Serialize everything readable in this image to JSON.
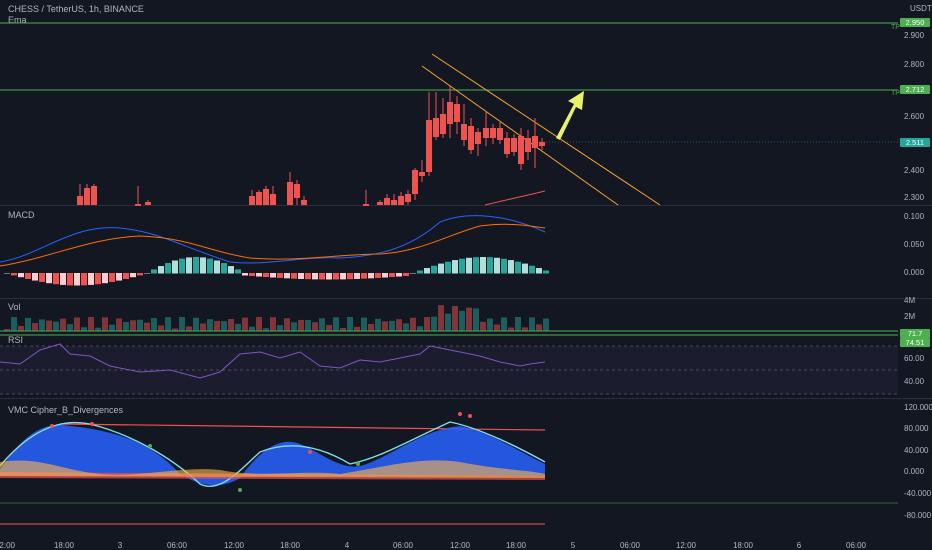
{
  "symbol_title": "CHESS / TetherUS, 1h, BINANCE",
  "ema_label": "Ema",
  "currency": "USDT",
  "price_axis": {
    "ticks": [
      "2.900",
      "2.800",
      "2.700",
      "2.600",
      "2.400",
      "2.300"
    ],
    "tag_upper": "2.950",
    "tag_tp2": "2.712",
    "tag_current": "2.511",
    "tp_label": "TP"
  },
  "macd": {
    "label": "MACD",
    "ticks": [
      "0.100",
      "0.050",
      "0.000"
    ]
  },
  "vol": {
    "label": "Vol",
    "ticks": [
      "4M",
      "2M"
    ]
  },
  "rsi": {
    "label": "RSI",
    "ticks": [
      "60.00",
      "40.00"
    ],
    "tag_a": "71.7",
    "tag_b": "74.51"
  },
  "cipher": {
    "label": "VMC Cipher_B_Divergences",
    "ticks": [
      "120.000",
      "80.000",
      "40.000",
      "0.000",
      "-40.000",
      "-80.000"
    ]
  },
  "time_axis": [
    "12:00",
    "18:00",
    "3",
    "06:00",
    "12:00",
    "18:00",
    "4",
    "06:00",
    "12:00",
    "18:00",
    "5",
    "06:00",
    "12:00",
    "18:00",
    "6",
    "06:00"
  ],
  "colors": {
    "up": "#26a69a",
    "down": "#ef5350",
    "tp_line": "#4caf50",
    "channel": "#f7a530",
    "arrow": "#e8f36b"
  }
}
